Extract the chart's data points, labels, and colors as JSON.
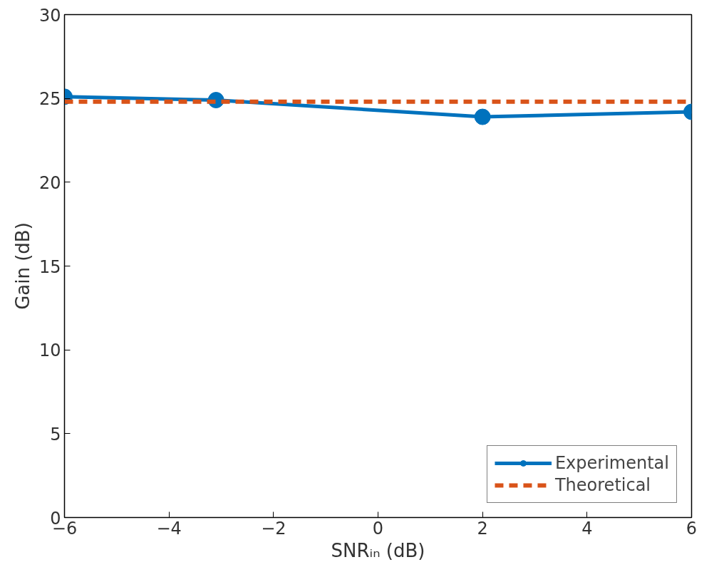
{
  "chart_data": {
    "type": "line",
    "xlabel": "SNRᵢₙ (dB)",
    "ylabel": "Gain (dB)",
    "xlim": [
      -6,
      6
    ],
    "xticks": [
      -6,
      -4,
      -2,
      0,
      2,
      4,
      6
    ],
    "ylim": [
      0,
      30
    ],
    "yticks": [
      0,
      5,
      10,
      15,
      20,
      25,
      30
    ],
    "grid": false,
    "legend": "bottom right",
    "series": [
      {
        "name": "Experimental",
        "color": "#0072bd",
        "x": [
          -6,
          -3.1,
          2,
          6
        ],
        "values": [
          25.1,
          24.9,
          23.9,
          24.2
        ],
        "marker": "circle",
        "line_style": "solid"
      },
      {
        "name": "Theoretical",
        "color": "#d95319",
        "x": [
          -6,
          6
        ],
        "values": [
          24.8,
          24.8
        ],
        "marker": "none",
        "line_style": "dashed"
      }
    ]
  }
}
